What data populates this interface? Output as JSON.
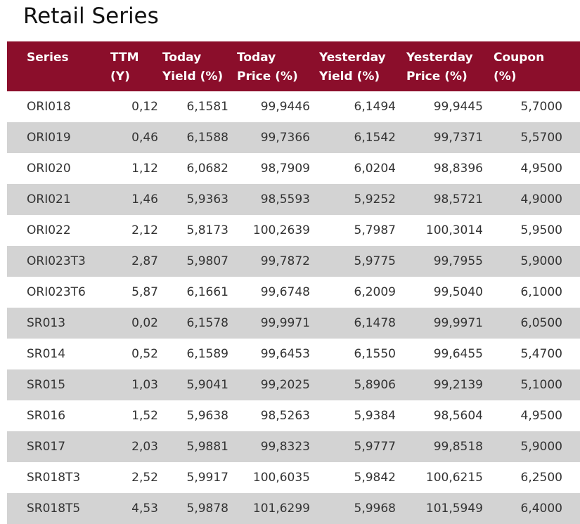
{
  "page": {
    "title": "Retail Series"
  },
  "table": {
    "headers": [
      {
        "key": "series",
        "lines": [
          "Series",
          ""
        ]
      },
      {
        "key": "ttm",
        "lines": [
          "TTM",
          "(Y)"
        ]
      },
      {
        "key": "today_yield",
        "lines": [
          "Today",
          "Yield (%)"
        ]
      },
      {
        "key": "today_price",
        "lines": [
          "Today",
          "Price (%)"
        ]
      },
      {
        "key": "yesterday_yield",
        "lines": [
          "Yesterday",
          "Yield (%)"
        ]
      },
      {
        "key": "yesterday_price",
        "lines": [
          "Yesterday",
          "Price (%)"
        ]
      },
      {
        "key": "coupon",
        "lines": [
          "Coupon",
          "(%)"
        ]
      }
    ],
    "rows": [
      [
        "ORI018",
        "0,12",
        "6,1581",
        "99,9446",
        "6,1494",
        "99,9445",
        "5,7000"
      ],
      [
        "ORI019",
        "0,46",
        "6,1588",
        "99,7366",
        "6,1542",
        "99,7371",
        "5,5700"
      ],
      [
        "ORI020",
        "1,12",
        "6,0682",
        "98,7909",
        "6,0204",
        "98,8396",
        "4,9500"
      ],
      [
        "ORI021",
        "1,46",
        "5,9363",
        "98,5593",
        "5,9252",
        "98,5721",
        "4,9000"
      ],
      [
        "ORI022",
        "2,12",
        "5,8173",
        "100,2639",
        "5,7987",
        "100,3014",
        "5,9500"
      ],
      [
        "ORI023T3",
        "2,87",
        "5,9807",
        "99,7872",
        "5,9775",
        "99,7955",
        "5,9000"
      ],
      [
        "ORI023T6",
        "5,87",
        "6,1661",
        "99,6748",
        "6,2009",
        "99,5040",
        "6,1000"
      ],
      [
        "SR013",
        "0,02",
        "6,1578",
        "99,9971",
        "6,1478",
        "99,9971",
        "6,0500"
      ],
      [
        "SR014",
        "0,52",
        "6,1589",
        "99,6453",
        "6,1550",
        "99,6455",
        "5,4700"
      ],
      [
        "SR015",
        "1,03",
        "5,9041",
        "99,2025",
        "5,8906",
        "99,2139",
        "5,1000"
      ],
      [
        "SR016",
        "1,52",
        "5,9638",
        "98,5263",
        "5,9384",
        "98,5604",
        "4,9500"
      ],
      [
        "SR017",
        "2,03",
        "5,9881",
        "99,8323",
        "5,9777",
        "99,8518",
        "5,9000"
      ],
      [
        "SR018T3",
        "2,52",
        "5,9917",
        "100,6035",
        "5,9842",
        "100,6215",
        "6,2500"
      ],
      [
        "SR018T5",
        "4,53",
        "5,9878",
        "101,6299",
        "5,9968",
        "101,5949",
        "6,4000"
      ]
    ]
  },
  "colors": {
    "header_background": "#8b0e2b",
    "header_text": "#ffffff",
    "alt_row_background": "#d3d3d3"
  }
}
